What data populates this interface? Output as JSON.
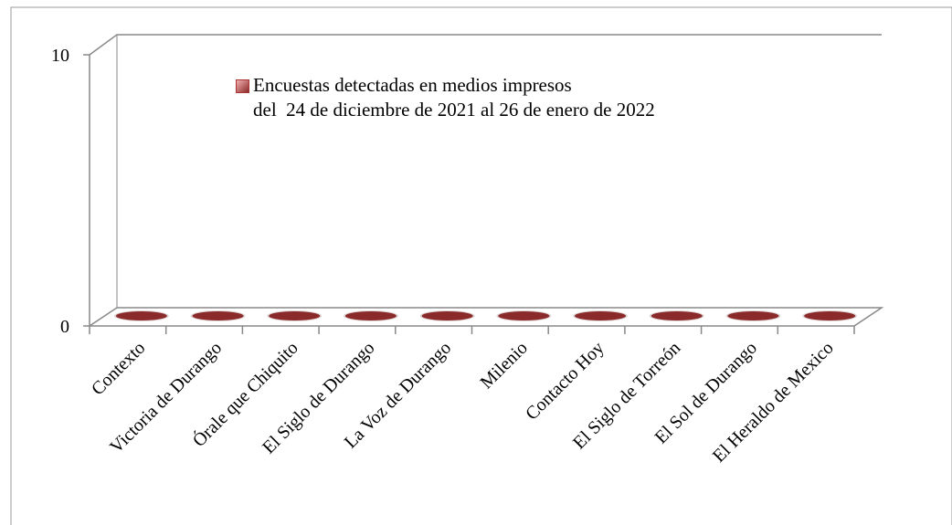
{
  "chart_data": {
    "type": "bar3d",
    "categories": [
      "Contexto",
      "Victoria de Durango",
      "Órale que Chiquito",
      "El Siglo de Durango",
      "La Voz de Durango",
      "Milenio",
      "Contacto Hoy",
      "El Siglo de Torreón",
      "El Sol de Durango",
      "El Heraldo de Mexico"
    ],
    "series": [
      {
        "name": "Encuestas detectadas en medios impresos\ndel  24 de diciembre de 2021 al 26 de enero de 2022",
        "color": "#8b2a2a",
        "values": [
          0,
          0,
          0,
          0,
          0,
          0,
          0,
          0,
          0,
          0
        ]
      }
    ],
    "ylim": [
      0,
      10
    ],
    "yticks": [
      0,
      10
    ]
  }
}
